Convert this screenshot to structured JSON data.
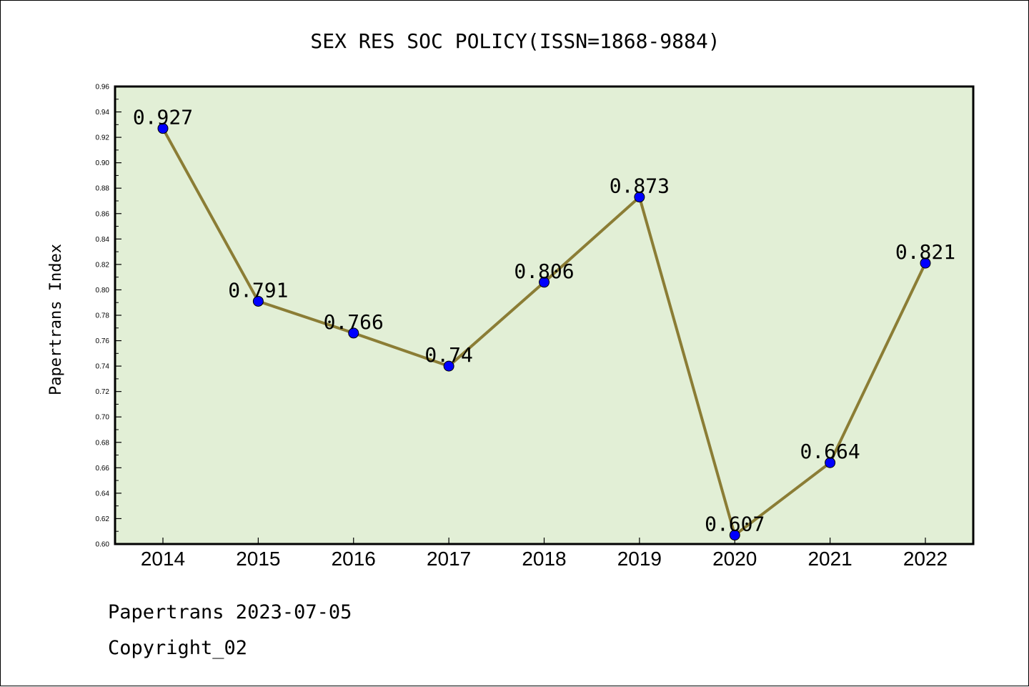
{
  "chart_data": {
    "type": "line",
    "title": "SEX RES SOC POLICY(ISSN=1868-9884)",
    "ylabel": "Papertrans Index",
    "xlabel": "",
    "categories": [
      "2014",
      "2015",
      "2016",
      "2017",
      "2018",
      "2019",
      "2020",
      "2021",
      "2022"
    ],
    "values": [
      0.927,
      0.791,
      0.766,
      0.74,
      0.806,
      0.873,
      0.607,
      0.664,
      0.821
    ],
    "data_labels": [
      "0.927",
      "0.791",
      "0.766",
      "0.74",
      "0.806",
      "0.873",
      "0.607",
      "0.664",
      "0.821"
    ],
    "ylim": [
      0.6,
      0.96
    ],
    "yticks": [
      "0.60",
      "0.62",
      "0.64",
      "0.66",
      "0.68",
      "0.70",
      "0.72",
      "0.74",
      "0.76",
      "0.78",
      "0.80",
      "0.82",
      "0.84",
      "0.86",
      "0.88",
      "0.90",
      "0.92",
      "0.94",
      "0.96"
    ],
    "grid": false,
    "colors": {
      "plot_background": "#e2efd6",
      "line": "#8b7d35",
      "marker": "#0000ff"
    }
  },
  "footer": {
    "line1": "Papertrans 2023-07-05",
    "line2": "Copyright_02"
  }
}
